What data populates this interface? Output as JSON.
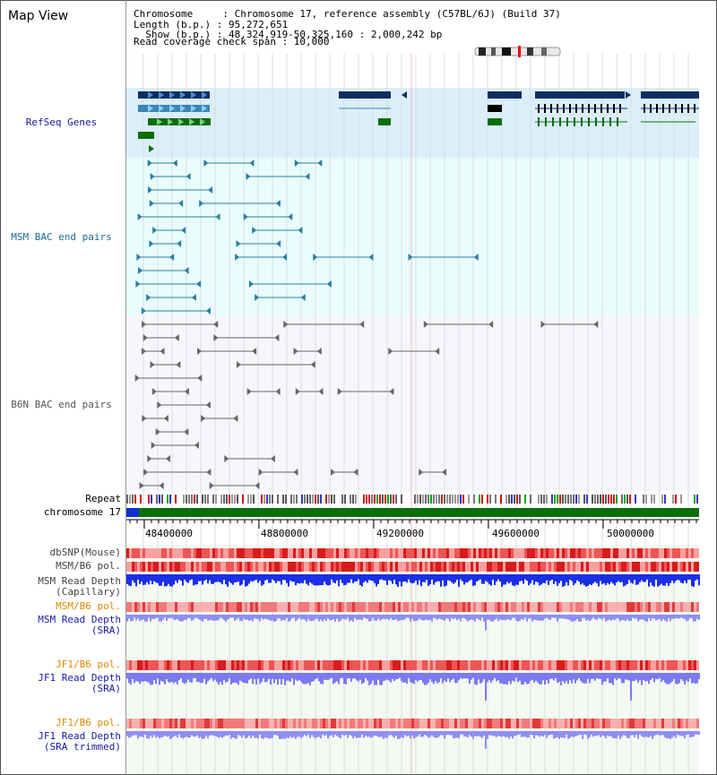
{
  "header": {
    "title": "Map View",
    "chromosome": "Chromosome     : Chromosome 17, reference assembly (C57BL/6J) (Build 37)",
    "length": "Length (b.p.) : 95,272,651",
    "show": "  Show (b.p.) : 48,324,919-50,325,160 : 2,000,242 bp",
    "coverage": "Read coverage check span : 10,000"
  },
  "tracks": {
    "refseq": "RefSeq Genes",
    "msm_bac": "MSM BAC end pairs",
    "b6n_bac": "B6N BAC end pairs",
    "repeat": "Repeat",
    "chromosome": "chromosome 17",
    "dbsnp": "dbSNP(Mouse)",
    "msm_b6_pol_1": "MSM/B6 pol.",
    "msm_depth_cap": "MSM Read Depth\n(Capillary)",
    "msm_b6_pol_2": "MSM/B6 pol.",
    "msm_depth_sra": "MSM Read Depth\n(SRA)",
    "jf1_b6_pol_1": "JF1/B6 pol.",
    "jf1_depth_sra": "JF1 Read Depth\n(SRA)",
    "jf1_b6_pol_2": "JF1/B6 pol.",
    "jf1_depth_trim": "JF1 Read Depth\n(SRA trimmed)"
  },
  "axis": {
    "labels": [
      "48400000",
      "48800000",
      "49200000",
      "49600000",
      "50000000"
    ]
  },
  "colors": {
    "refseq_label": "#1a1aa6",
    "msm_label": "#1f6b8f",
    "b6n_label": "#555555",
    "pol_label": "#e08a00",
    "sra_label": "#1a1aa6",
    "refseq_band": "#dbeef9",
    "gene_dark": "#0b2e63",
    "gene_mid": "#3a86b4",
    "gene_green": "#0a6e0a",
    "msm_feature": "#2a7fa0",
    "b6n_feature": "#666666",
    "chrom_green": "#0b6e0b",
    "chrom_blue": "#1030d0"
  }
}
